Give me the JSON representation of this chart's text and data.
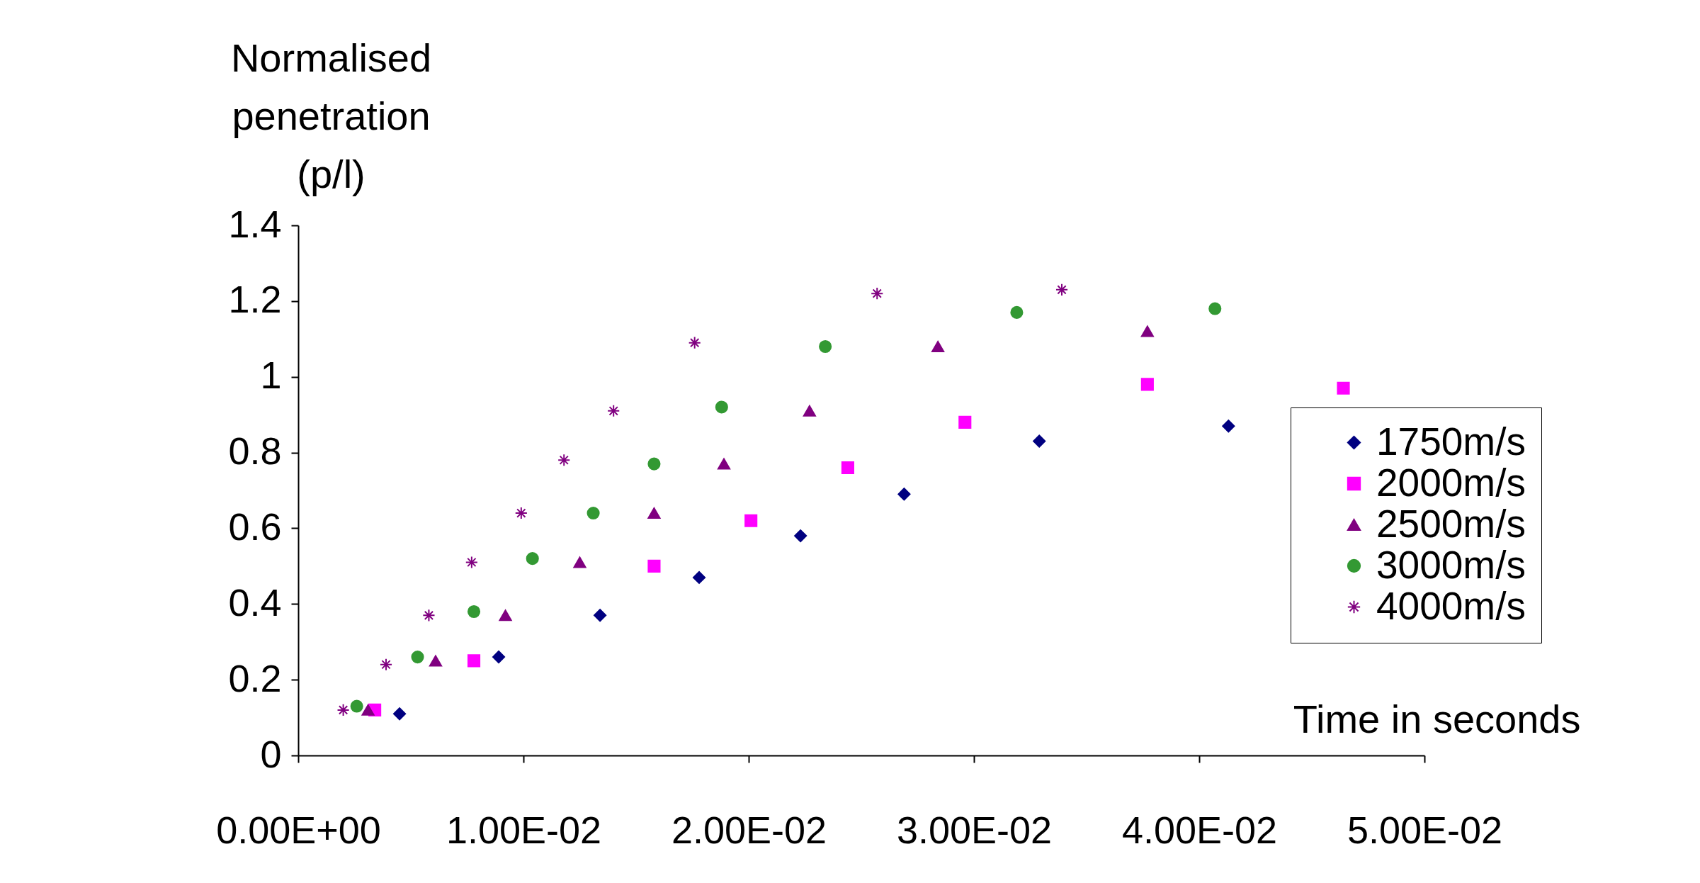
{
  "chart_data": {
    "type": "scatter",
    "xlabel": "Time in seconds",
    "ylabel": "Normalised\npenetration\n(p/l)",
    "xlim": [
      0,
      0.05
    ],
    "xticks": [
      {
        "value": 0,
        "label": "0.00E+00"
      },
      {
        "value": 0.01,
        "label": "1.00E-02"
      },
      {
        "value": 0.02,
        "label": "2.00E-02"
      },
      {
        "value": 0.03,
        "label": "3.00E-02"
      },
      {
        "value": 0.04,
        "label": "4.00E-02"
      },
      {
        "value": 0.05,
        "label": "5.00E-02"
      }
    ],
    "ylim": [
      0,
      1.4
    ],
    "yticks": [
      0,
      0.2,
      0.4,
      0.6,
      0.8,
      1,
      1.2,
      1.4
    ],
    "grid": false,
    "legend": "right",
    "series": [
      {
        "name": "1750m/s",
        "color": "#000080",
        "marker": "diamond",
        "x": [
          0.0045,
          0.0089,
          0.0134,
          0.0178,
          0.0223,
          0.0269,
          0.0329,
          0.0413
        ],
        "values": [
          0.11,
          0.26,
          0.37,
          0.47,
          0.58,
          0.69,
          0.83,
          0.87
        ]
      },
      {
        "name": "2000m/s",
        "color": "#ff00ff",
        "marker": "square",
        "x": [
          0.0034,
          0.0078,
          0.0158,
          0.0201,
          0.0244,
          0.0296,
          0.0377,
          0.0464
        ],
        "values": [
          0.12,
          0.25,
          0.5,
          0.62,
          0.76,
          0.88,
          0.98,
          0.97
        ]
      },
      {
        "name": "2500m/s",
        "color": "#800080",
        "marker": "triangle",
        "x": [
          0.0031,
          0.0061,
          0.0092,
          0.0125,
          0.0158,
          0.0189,
          0.0227,
          0.0284,
          0.0377
        ],
        "values": [
          0.12,
          0.25,
          0.37,
          0.51,
          0.64,
          0.77,
          0.91,
          1.08,
          1.12
        ]
      },
      {
        "name": "3000m/s",
        "color": "#339933",
        "marker": "circle",
        "x": [
          0.0026,
          0.0053,
          0.0078,
          0.0104,
          0.0131,
          0.0158,
          0.0188,
          0.0234,
          0.0319,
          0.0407
        ],
        "values": [
          0.13,
          0.26,
          0.38,
          0.52,
          0.64,
          0.77,
          0.92,
          1.08,
          1.17,
          1.18
        ]
      },
      {
        "name": "4000m/s",
        "color": "#800080",
        "marker": "cross",
        "x": [
          0.002,
          0.0039,
          0.0058,
          0.0077,
          0.0099,
          0.0118,
          0.014,
          0.0176,
          0.0257,
          0.0339
        ],
        "values": [
          0.12,
          0.24,
          0.37,
          0.51,
          0.64,
          0.78,
          0.91,
          1.09,
          1.22,
          1.23
        ]
      }
    ]
  }
}
